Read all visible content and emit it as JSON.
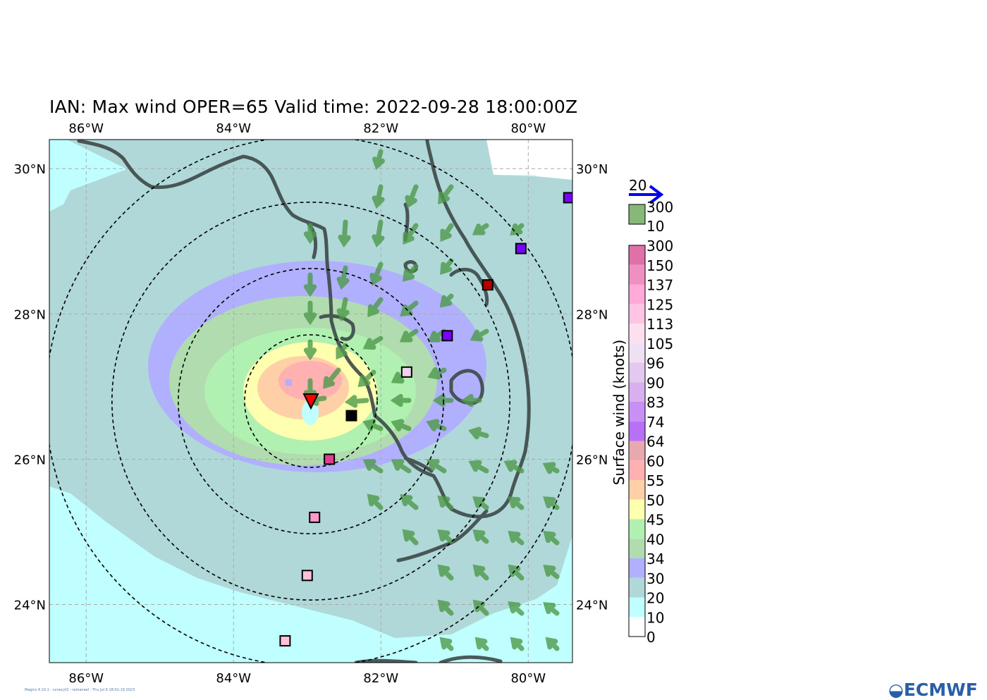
{
  "title": "IAN: Max wind OPER=65 Valid time: 2022-09-28 18:00:00Z",
  "footer": "Magics 4.10.1 - cxnecyf2 - ramaneel - Thu Jul 6 18:01:19 2023",
  "logo_text": "ECMWF",
  "map": {
    "lon_min": -86.5,
    "lon_max": -79.4,
    "lat_min": 23.2,
    "lat_max": 30.4,
    "lon_ticks": [
      "86°W",
      "84°W",
      "82°W",
      "80°W"
    ],
    "lat_ticks": [
      "30°N",
      "28°N",
      "26°N",
      "24°N"
    ],
    "center": {
      "lon": -82.95,
      "lat": 26.8
    },
    "range_rings_deg": [
      0.9,
      1.8,
      2.7,
      3.6
    ],
    "storm_marker_color": "#ff0000"
  },
  "observations": [
    {
      "lon": -79.45,
      "lat": 29.6,
      "color": "#7a00ff"
    },
    {
      "lon": -80.1,
      "lat": 28.9,
      "color": "#7a00ff"
    },
    {
      "lon": -80.55,
      "lat": 28.4,
      "color": "#b00000"
    },
    {
      "lon": -81.1,
      "lat": 27.7,
      "color": "#7a00ff"
    },
    {
      "lon": -81.65,
      "lat": 27.2,
      "color": "#f0d0f0"
    },
    {
      "lon": -82.4,
      "lat": 26.6,
      "color": "#000000"
    },
    {
      "lon": -82.7,
      "lat": 26.0,
      "color": "#e04090"
    },
    {
      "lon": -82.9,
      "lat": 25.2,
      "color": "#ff99cc"
    },
    {
      "lon": -83.0,
      "lat": 24.4,
      "color": "#ffc0d8"
    },
    {
      "lon": -83.3,
      "lat": 23.5,
      "color": "#ffc0d8"
    }
  ],
  "legend": {
    "title": "Surface wind (knots)",
    "arrow_label": "20",
    "arrow_color": "#0000ee",
    "green_box_labels": [
      "300",
      "10"
    ],
    "green_box_color": "#86b87a",
    "levels": [
      "300",
      "150",
      "137",
      "125",
      "113",
      "105",
      "96",
      "90",
      "83",
      "74",
      "64",
      "60",
      "55",
      "50",
      "45",
      "40",
      "34",
      "30",
      "20",
      "10",
      "0"
    ],
    "colors": [
      "#e070a8",
      "#ee90c0",
      "#ffaad8",
      "#ffc4e4",
      "#fde0ef",
      "#f0e0f4",
      "#e4c8f0",
      "#d8b0f0",
      "#c890f4",
      "#b870f4",
      "#e8a8b0",
      "#ffb0b0",
      "#ffd0a8",
      "#ffffb0",
      "#b0f0b0",
      "#b0dcb0",
      "#b0b0ff",
      "#b0d8d8",
      "#c0ffff",
      "#ffffff"
    ]
  }
}
